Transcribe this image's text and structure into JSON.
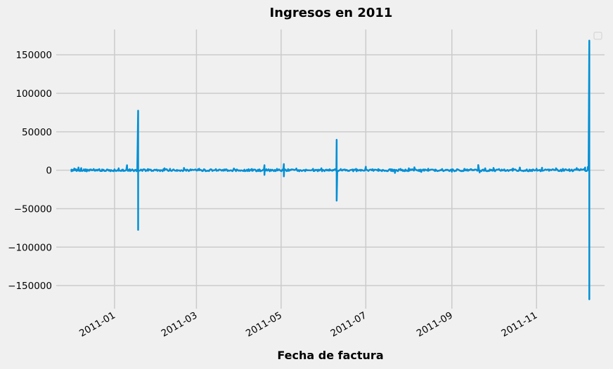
{
  "chart_data": {
    "type": "line",
    "title": "Ingresos en 2011",
    "xlabel": "Fecha de factura",
    "ylabel": "",
    "xlim": [
      "2010-11-20",
      "2011-12-20"
    ],
    "ylim": [
      -180000,
      183000
    ],
    "grid": true,
    "legend": {
      "placement": "top-right",
      "entries": []
    },
    "yticks": [
      150000,
      100000,
      50000,
      0,
      -50000,
      -100000,
      -150000
    ],
    "yticklabels": [
      "150000",
      "100000",
      "50000",
      "0",
      "−50000",
      "−100000",
      "−150000"
    ],
    "xticks": [
      "2011-01-01",
      "2011-03-01",
      "2011-05-01",
      "2011-07-01",
      "2011-09-01",
      "2011-11-01"
    ],
    "xticklabels": [
      "2011-01",
      "2011-03",
      "2011-05",
      "2011-07",
      "2011-09",
      "2011-11"
    ],
    "series": [
      {
        "color": "#008fd5",
        "points": [
          [
            "2010-12-01",
            1500
          ],
          [
            "2010-12-02",
            -800
          ],
          [
            "2010-12-03",
            2200
          ],
          [
            "2010-12-05",
            900
          ],
          [
            "2010-12-06",
            3500
          ],
          [
            "2010-12-07",
            -600
          ],
          [
            "2010-12-08",
            2800
          ],
          [
            "2010-12-10",
            1200
          ],
          [
            "2010-12-12",
            -1500
          ],
          [
            "2010-12-14",
            800
          ],
          [
            "2010-12-17",
            1600
          ],
          [
            "2010-12-20",
            -400
          ],
          [
            "2010-12-23",
            1000
          ],
          [
            "2011-01-04",
            2500
          ],
          [
            "2011-01-07",
            -700
          ],
          [
            "2011-01-10",
            6500
          ],
          [
            "2011-01-12",
            1200
          ],
          [
            "2011-01-18",
            77500
          ],
          [
            "2011-01-18",
            -77500
          ],
          [
            "2011-01-20",
            900
          ],
          [
            "2011-01-25",
            1500
          ],
          [
            "2011-02-01",
            -500
          ],
          [
            "2011-02-06",
            2500
          ],
          [
            "2011-02-10",
            1800
          ],
          [
            "2011-02-15",
            -900
          ],
          [
            "2011-02-20",
            3000
          ],
          [
            "2011-02-25",
            800
          ],
          [
            "2011-03-03",
            2000
          ],
          [
            "2011-03-10",
            -600
          ],
          [
            "2011-03-15",
            1500
          ],
          [
            "2011-03-22",
            900
          ],
          [
            "2011-03-28",
            2200
          ],
          [
            "2011-04-05",
            -1200
          ],
          [
            "2011-04-10",
            1600
          ],
          [
            "2011-04-15",
            800
          ],
          [
            "2011-04-19",
            6500
          ],
          [
            "2011-04-19",
            -6000
          ],
          [
            "2011-04-22",
            1200
          ],
          [
            "2011-04-28",
            1800
          ],
          [
            "2011-05-03",
            8000
          ],
          [
            "2011-05-03",
            -8000
          ],
          [
            "2011-05-06",
            1500
          ],
          [
            "2011-05-12",
            2200
          ],
          [
            "2011-05-18",
            -600
          ],
          [
            "2011-05-24",
            1800
          ],
          [
            "2011-05-30",
            2500
          ],
          [
            "2011-06-05",
            1200
          ],
          [
            "2011-06-10",
            39500
          ],
          [
            "2011-06-10",
            -39500
          ],
          [
            "2011-06-13",
            1500
          ],
          [
            "2011-06-18",
            -900
          ],
          [
            "2011-06-24",
            1800
          ],
          [
            "2011-07-01",
            4500
          ],
          [
            "2011-07-05",
            800
          ],
          [
            "2011-07-10",
            1500
          ],
          [
            "2011-07-15",
            -700
          ],
          [
            "2011-07-19",
            1200
          ],
          [
            "2011-07-22",
            -3500
          ],
          [
            "2011-07-26",
            1800
          ],
          [
            "2011-08-01",
            2500
          ],
          [
            "2011-08-05",
            3800
          ],
          [
            "2011-08-10",
            -2200
          ],
          [
            "2011-08-15",
            2000
          ],
          [
            "2011-08-20",
            900
          ],
          [
            "2011-08-25",
            1500
          ],
          [
            "2011-09-01",
            -2000
          ],
          [
            "2011-09-05",
            1200
          ],
          [
            "2011-09-10",
            1800
          ],
          [
            "2011-09-15",
            900
          ],
          [
            "2011-09-20",
            6800
          ],
          [
            "2011-09-21",
            -3000
          ],
          [
            "2011-09-25",
            2500
          ],
          [
            "2011-10-01",
            3000
          ],
          [
            "2011-10-05",
            1500
          ],
          [
            "2011-10-10",
            -1000
          ],
          [
            "2011-10-15",
            2200
          ],
          [
            "2011-10-20",
            3500
          ],
          [
            "2011-10-25",
            1000
          ],
          [
            "2011-11-01",
            2000
          ],
          [
            "2011-11-05",
            3200
          ],
          [
            "2011-11-10",
            -800
          ],
          [
            "2011-11-15",
            2500
          ],
          [
            "2011-11-20",
            1800
          ],
          [
            "2011-11-25",
            -1200
          ],
          [
            "2011-11-30",
            2800
          ],
          [
            "2011-12-03",
            1500
          ],
          [
            "2011-12-06",
            3500
          ],
          [
            "2011-12-08",
            4200
          ],
          [
            "2011-12-09",
            168500
          ],
          [
            "2011-12-09",
            -168500
          ]
        ]
      }
    ]
  }
}
